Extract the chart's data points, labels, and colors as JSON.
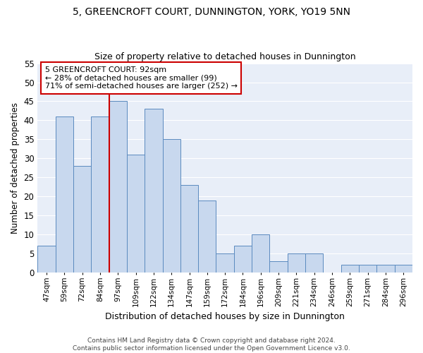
{
  "title": "5, GREENCROFT COURT, DUNNINGTON, YORK, YO19 5NN",
  "subtitle": "Size of property relative to detached houses in Dunnington",
  "xlabel": "Distribution of detached houses by size in Dunnington",
  "ylabel": "Number of detached properties",
  "bar_labels": [
    "47sqm",
    "59sqm",
    "72sqm",
    "84sqm",
    "97sqm",
    "109sqm",
    "122sqm",
    "134sqm",
    "147sqm",
    "159sqm",
    "172sqm",
    "184sqm",
    "196sqm",
    "209sqm",
    "221sqm",
    "234sqm",
    "246sqm",
    "259sqm",
    "271sqm",
    "284sqm",
    "296sqm"
  ],
  "bar_values": [
    7,
    41,
    28,
    41,
    45,
    31,
    43,
    35,
    23,
    19,
    5,
    7,
    10,
    3,
    5,
    5,
    0,
    2,
    2,
    2,
    2
  ],
  "bar_color": "#c8d8ee",
  "bar_edgecolor": "#5b8abf",
  "vline_color": "#cc0000",
  "vline_index": 4,
  "annotation_line1": "5 GREENCROFT COURT: 92sqm",
  "annotation_line2": "← 28% of detached houses are smaller (99)",
  "annotation_line3": "71% of semi-detached houses are larger (252) →",
  "annotation_box_facecolor": "#ffffff",
  "annotation_box_edgecolor": "#cc0000",
  "ylim": [
    0,
    55
  ],
  "yticks": [
    0,
    5,
    10,
    15,
    20,
    25,
    30,
    35,
    40,
    45,
    50,
    55
  ],
  "plot_bg_color": "#e8eef8",
  "grid_color": "#ffffff",
  "footer1": "Contains HM Land Registry data © Crown copyright and database right 2024.",
  "footer2": "Contains public sector information licensed under the Open Government Licence v3.0."
}
